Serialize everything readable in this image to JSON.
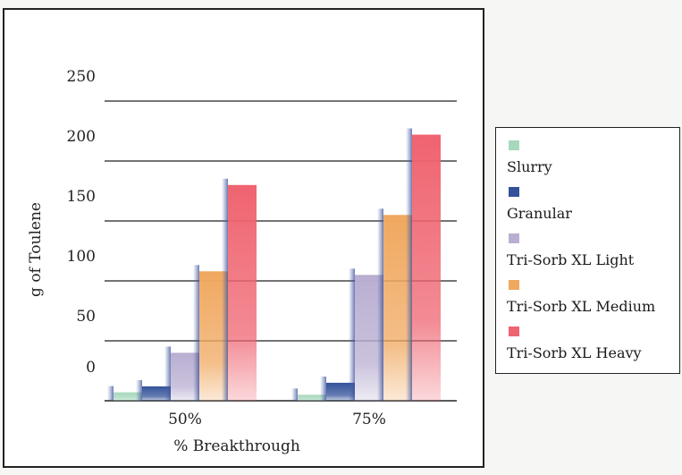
{
  "chart_data": {
    "type": "bar",
    "categories": [
      "50%",
      "75%"
    ],
    "series": [
      {
        "name": "Slurry",
        "values": [
          7,
          5
        ],
        "color": "#a6d8bd"
      },
      {
        "name": "Granular",
        "values": [
          12,
          15
        ],
        "color": "#33529a"
      },
      {
        "name": "Tri-Sorb XL Light",
        "values": [
          40,
          105
        ],
        "color": "#b9aed1"
      },
      {
        "name": "Tri-Sorb XL Medium",
        "values": [
          108,
          155
        ],
        "color": "#f0a860"
      },
      {
        "name": "Tri-Sorb XL Heavy",
        "values": [
          180,
          222
        ],
        "color": "#ef6470"
      }
    ],
    "ytick_labels": [
      "250",
      "200",
      "150",
      "100",
      "50",
      "0"
    ],
    "ylim": [
      0,
      250
    ],
    "xlabel": "% Breakthrough",
    "ylabel": "g of Toulene",
    "title": "",
    "grid": true,
    "legend_position": "right"
  }
}
